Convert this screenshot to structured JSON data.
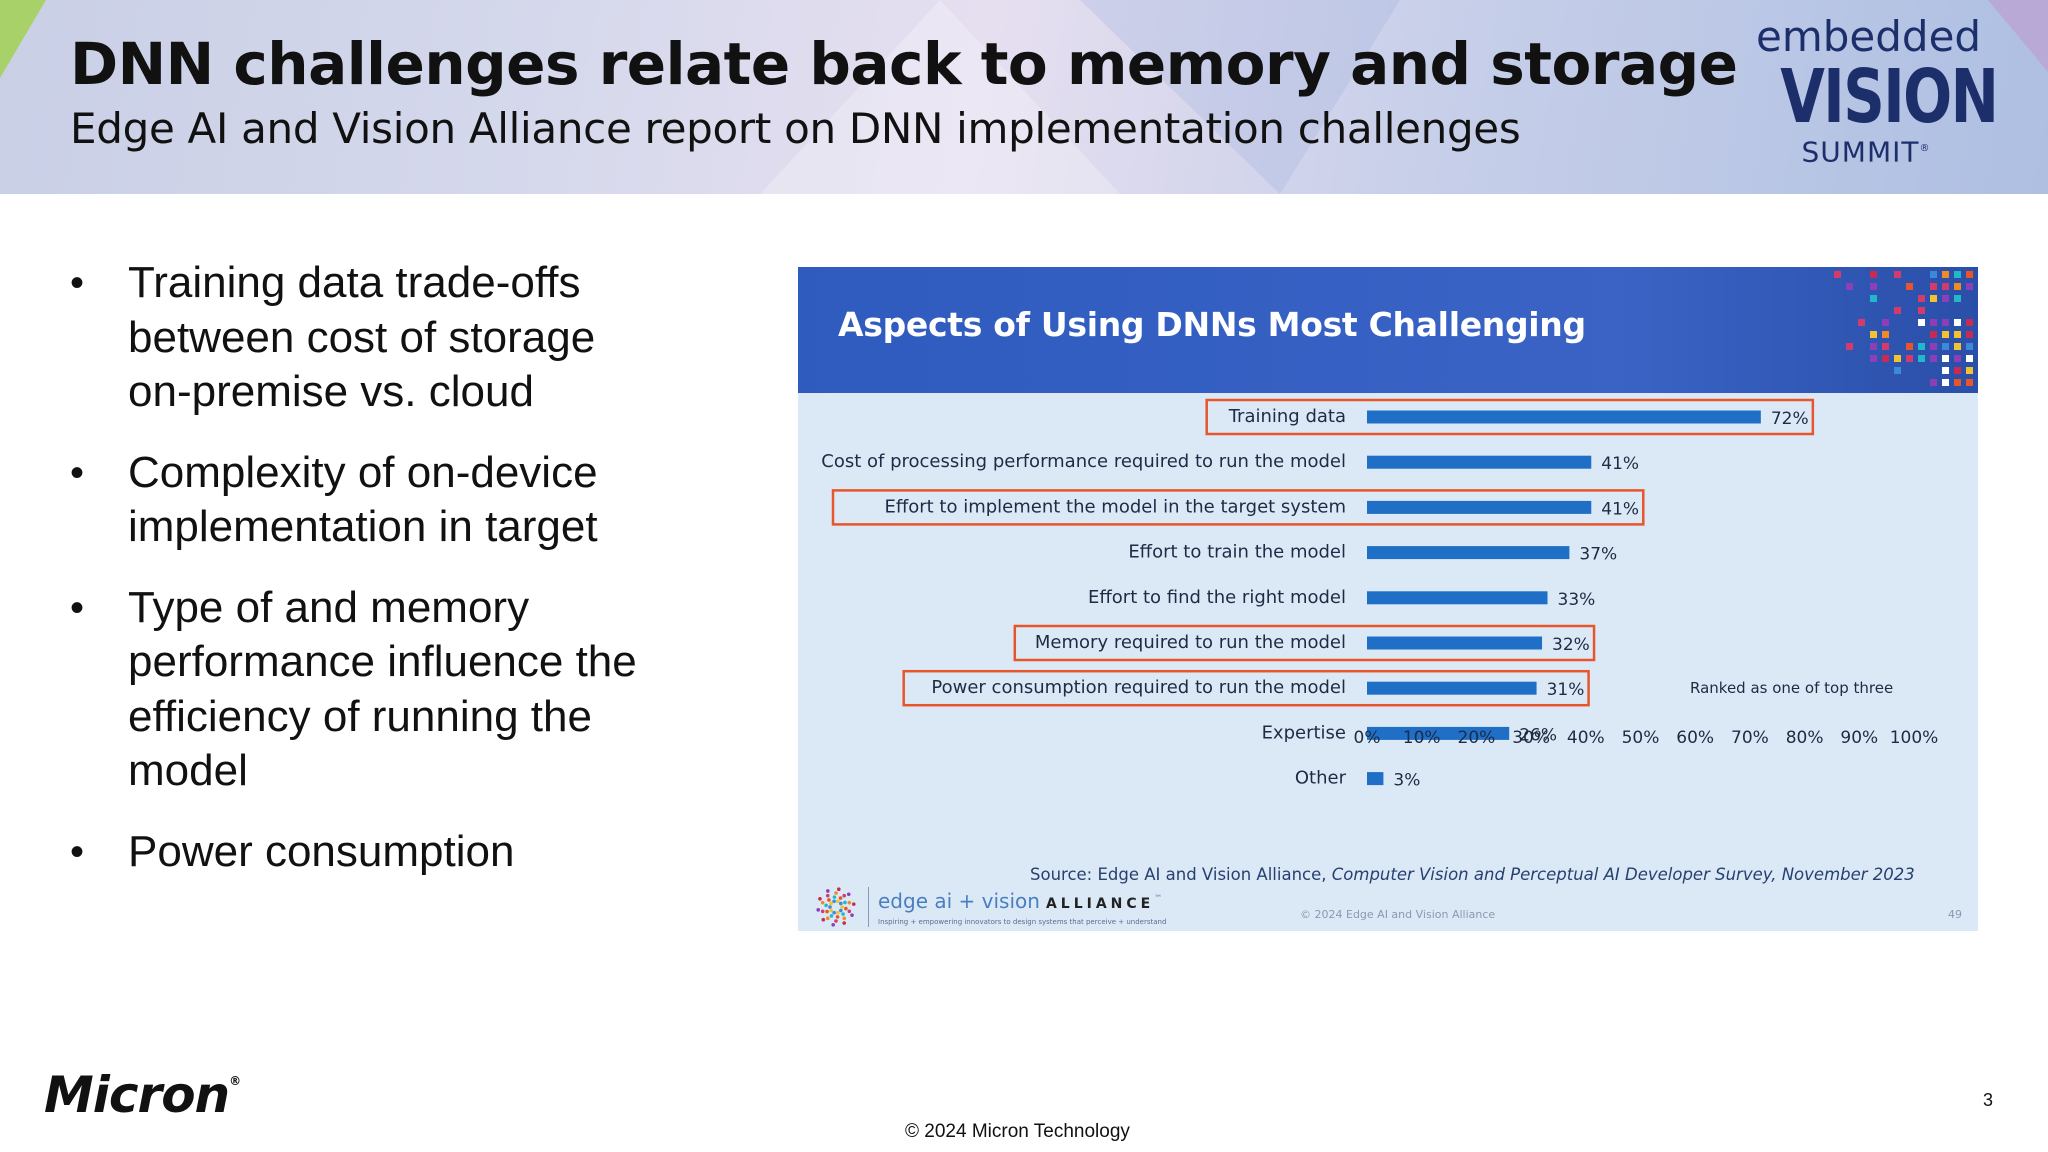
{
  "header": {
    "title": "DNN challenges relate back to memory and storage",
    "subtitle": "Edge AI and Vision Alliance report on DNN implementation challenges",
    "logo_line1": "embedded",
    "logo_line2": "VISION",
    "logo_line3": "SUMMIT",
    "logo_mark": "®"
  },
  "bullets": [
    "Training data trade-offs between cost of storage on-premise vs. cloud",
    "Complexity of on-device implementation in target",
    "Type of and memory performance influence the efficiency of running the model",
    "Power consumption"
  ],
  "bullet_symbol": "•",
  "chart_data": {
    "type": "bar",
    "orientation": "horizontal",
    "title": "Aspects of Using DNNs Most Challenging",
    "categories": [
      "Training data",
      "Cost of processing performance required to run the model",
      "Effort to implement the model in the target system",
      "Effort to train the model",
      "Effort to find the right model",
      "Memory required to run the model",
      "Power consumption required to run the model",
      "Expertise",
      "Other"
    ],
    "values": [
      72,
      41,
      41,
      37,
      33,
      32,
      31,
      26,
      3
    ],
    "value_labels": [
      "72%",
      "41%",
      "41%",
      "37%",
      "33%",
      "32%",
      "31%",
      "26%",
      "3%"
    ],
    "highlighted": [
      true,
      false,
      true,
      false,
      false,
      true,
      true,
      false,
      false
    ],
    "xlim": [
      0,
      100
    ],
    "xticks": [
      "0%",
      "10%",
      "20%",
      "30%",
      "40%",
      "50%",
      "60%",
      "70%",
      "80%",
      "90%",
      "100%"
    ],
    "annotation": "Ranked as one of top three",
    "bar_color": "#1f6fc6",
    "highlight_color": "#e8552a",
    "grid": false,
    "legend": "none"
  },
  "chart_footer": {
    "source_prefix": "Source: Edge AI and Vision Alliance, ",
    "source_title": "Computer Vision and Perceptual AI Developer Survey, November 2023",
    "brand_light": "edge ai + vision",
    "brand_bold": "ALLIANCE",
    "brand_mark": "™",
    "tagline": "Inspiring + empowering innovators to design systems that perceive + understand",
    "copyright": "© 2024 Edge AI and Vision Alliance",
    "page": "49"
  },
  "footer": {
    "company": "Micron",
    "company_mark": "®",
    "copyright": "© 2024 Micron Technology",
    "page_number": "3"
  },
  "colors": {
    "header_green": "#a9d16a",
    "header_purple": "#b9a9d6",
    "chart_banner": "#2f5bbf",
    "chart_bg": "#dbe9f7",
    "navy": "#1c2f6b"
  }
}
